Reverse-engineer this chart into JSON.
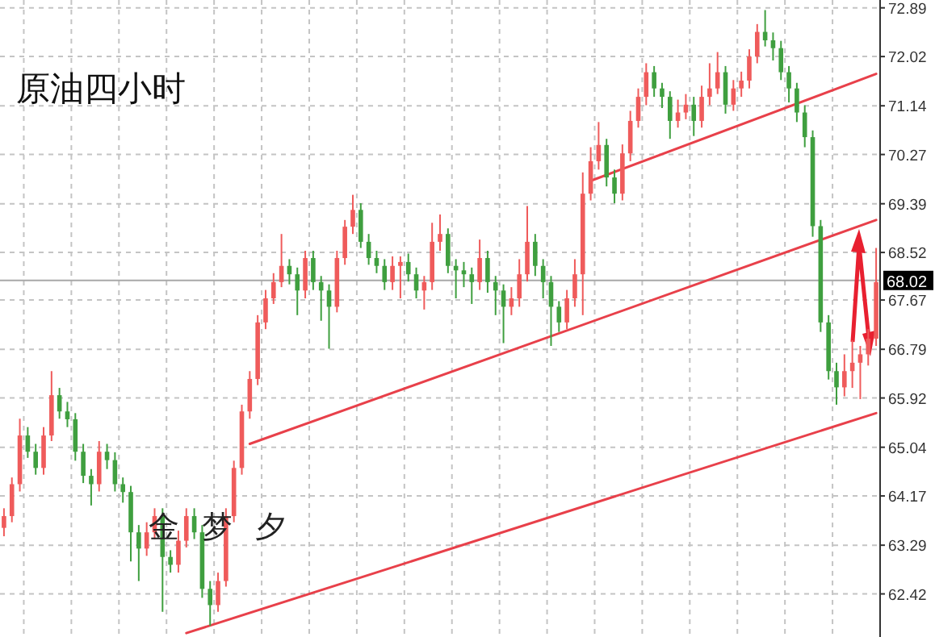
{
  "chart_data": {
    "type": "candlestick",
    "title": "原油四小时",
    "annotations": [
      "金梦夕"
    ],
    "categories": [
      null,
      null,
      null,
      null,
      null,
      null,
      null,
      null,
      null,
      null,
      null,
      null,
      null,
      null,
      null,
      null,
      null,
      null,
      null,
      null,
      null,
      null,
      null,
      null,
      null,
      null,
      null,
      null,
      null,
      null,
      null,
      null,
      null,
      null,
      null,
      null,
      null,
      null,
      null,
      null,
      null,
      null,
      null,
      null,
      null,
      null,
      null,
      null,
      null,
      null,
      null,
      null,
      null,
      null,
      null,
      null,
      null,
      null,
      null,
      null,
      null,
      null,
      null,
      null,
      null,
      null,
      null,
      null,
      null,
      null,
      null,
      null,
      null,
      null,
      null,
      null,
      null,
      null,
      null,
      null,
      null,
      null,
      null,
      null,
      null,
      null,
      null,
      null,
      null,
      null,
      null,
      null,
      null,
      null,
      null,
      null,
      null,
      null,
      null,
      null,
      null,
      null,
      null,
      null,
      null,
      null,
      null,
      null,
      null,
      null,
      null
    ],
    "ohlc": [
      [
        63.6,
        63.95,
        63.45,
        63.81
      ],
      [
        63.81,
        64.5,
        63.7,
        64.38
      ],
      [
        64.38,
        65.55,
        64.25,
        65.25
      ],
      [
        65.25,
        65.4,
        64.85,
        64.96
      ],
      [
        64.96,
        65.1,
        64.55,
        64.67
      ],
      [
        64.67,
        65.4,
        64.55,
        65.25
      ],
      [
        65.25,
        66.4,
        65.15,
        65.97
      ],
      [
        65.97,
        66.1,
        65.55,
        65.68
      ],
      [
        65.68,
        65.85,
        65.4,
        65.54
      ],
      [
        65.54,
        65.65,
        64.8,
        64.96
      ],
      [
        64.96,
        65.1,
        64.4,
        64.53
      ],
      [
        64.53,
        64.65,
        64.0,
        64.38
      ],
      [
        64.38,
        65.15,
        64.25,
        64.96
      ],
      [
        64.96,
        65.1,
        64.65,
        64.81
      ],
      [
        64.81,
        64.95,
        64.25,
        64.38
      ],
      [
        64.38,
        64.5,
        64.05,
        64.24
      ],
      [
        64.24,
        64.35,
        63.0,
        63.52
      ],
      [
        63.52,
        63.65,
        62.65,
        63.23
      ],
      [
        63.23,
        63.7,
        63.1,
        63.52
      ],
      [
        63.52,
        63.95,
        63.4,
        63.81
      ],
      [
        63.81,
        63.95,
        62.1,
        63.08
      ],
      [
        63.08,
        63.2,
        62.8,
        62.94
      ],
      [
        62.94,
        63.55,
        62.8,
        63.37
      ],
      [
        63.37,
        63.95,
        63.25,
        63.81
      ],
      [
        63.81,
        63.95,
        63.4,
        63.52
      ],
      [
        63.52,
        63.65,
        62.35,
        62.51
      ],
      [
        62.51,
        62.65,
        61.85,
        62.22
      ],
      [
        62.22,
        62.8,
        62.1,
        62.65
      ],
      [
        62.65,
        63.95,
        62.55,
        63.81
      ],
      [
        63.81,
        64.8,
        63.7,
        64.67
      ],
      [
        64.67,
        65.8,
        64.55,
        65.68
      ],
      [
        65.68,
        66.4,
        65.55,
        66.26
      ],
      [
        66.26,
        67.4,
        66.15,
        67.27
      ],
      [
        67.27,
        67.85,
        67.15,
        67.7
      ],
      [
        67.7,
        68.15,
        67.6,
        67.99
      ],
      [
        67.99,
        68.85,
        67.9,
        68.28
      ],
      [
        68.28,
        68.4,
        67.95,
        68.13
      ],
      [
        68.13,
        68.25,
        67.4,
        67.84
      ],
      [
        67.84,
        68.55,
        67.7,
        68.42
      ],
      [
        68.42,
        68.55,
        67.85,
        67.99
      ],
      [
        67.99,
        68.1,
        67.3,
        67.84
      ],
      [
        67.84,
        67.95,
        66.8,
        67.55
      ],
      [
        67.55,
        68.55,
        67.45,
        68.42
      ],
      [
        68.42,
        69.1,
        68.3,
        68.98
      ],
      [
        68.98,
        69.55,
        68.85,
        69.28
      ],
      [
        69.28,
        69.4,
        68.6,
        68.71
      ],
      [
        68.71,
        68.85,
        68.3,
        68.42
      ],
      [
        68.42,
        68.55,
        68.15,
        68.28
      ],
      [
        68.28,
        68.4,
        67.85,
        67.99
      ],
      [
        67.99,
        68.45,
        67.85,
        68.28
      ],
      [
        68.28,
        68.45,
        67.7,
        68.35
      ],
      [
        68.35,
        68.5,
        68.0,
        68.13
      ],
      [
        68.13,
        68.25,
        67.7,
        67.84
      ],
      [
        67.84,
        68.1,
        67.5,
        67.99
      ],
      [
        67.99,
        69.05,
        67.85,
        68.71
      ],
      [
        68.71,
        69.2,
        68.55,
        68.85
      ],
      [
        68.85,
        68.95,
        68.15,
        68.28
      ],
      [
        68.28,
        68.4,
        67.7,
        68.2
      ],
      [
        68.2,
        68.35,
        67.9,
        68.13
      ],
      [
        68.13,
        68.25,
        67.6,
        67.99
      ],
      [
        67.99,
        68.75,
        67.85,
        68.42
      ],
      [
        68.42,
        68.55,
        67.8,
        67.99
      ],
      [
        67.99,
        68.1,
        67.4,
        67.84
      ],
      [
        67.84,
        67.95,
        66.9,
        67.55
      ],
      [
        67.55,
        67.9,
        67.4,
        67.7
      ],
      [
        67.7,
        68.4,
        67.55,
        68.13
      ],
      [
        68.13,
        69.35,
        68.0,
        68.71
      ],
      [
        68.71,
        68.85,
        68.1,
        68.28
      ],
      [
        68.28,
        68.4,
        67.7,
        67.99
      ],
      [
        67.99,
        68.1,
        66.85,
        67.55
      ],
      [
        67.55,
        67.65,
        67.1,
        67.27
      ],
      [
        67.27,
        67.85,
        67.15,
        67.7
      ],
      [
        67.7,
        68.4,
        67.55,
        68.13
      ],
      [
        68.13,
        69.95,
        67.4,
        69.57
      ],
      [
        69.57,
        70.4,
        69.45,
        70.15
      ],
      [
        70.15,
        70.85,
        70.0,
        70.44
      ],
      [
        70.44,
        70.55,
        69.7,
        69.86
      ],
      [
        69.86,
        70.0,
        69.4,
        69.57
      ],
      [
        69.57,
        70.45,
        69.45,
        70.29
      ],
      [
        70.29,
        71.05,
        70.15,
        70.87
      ],
      [
        70.87,
        71.45,
        70.75,
        71.3
      ],
      [
        71.3,
        71.9,
        71.15,
        71.74
      ],
      [
        71.74,
        71.85,
        71.3,
        71.45
      ],
      [
        71.45,
        71.55,
        71.1,
        71.3
      ],
      [
        71.3,
        71.4,
        70.55,
        70.87
      ],
      [
        70.87,
        71.25,
        70.75,
        71.02
      ],
      [
        71.02,
        71.35,
        70.9,
        71.16
      ],
      [
        71.16,
        71.3,
        70.6,
        70.87
      ],
      [
        70.87,
        71.5,
        70.75,
        71.3
      ],
      [
        71.3,
        71.9,
        71.15,
        71.45
      ],
      [
        71.45,
        72.1,
        71.35,
        71.74
      ],
      [
        71.74,
        71.85,
        71.0,
        71.16
      ],
      [
        71.16,
        71.6,
        71.05,
        71.45
      ],
      [
        71.45,
        71.75,
        71.3,
        71.59
      ],
      [
        71.59,
        72.15,
        71.45,
        72.02
      ],
      [
        72.02,
        72.6,
        71.9,
        72.46
      ],
      [
        72.46,
        72.85,
        72.2,
        72.31
      ],
      [
        72.31,
        72.45,
        71.95,
        72.17
      ],
      [
        72.17,
        72.3,
        71.6,
        71.74
      ],
      [
        71.74,
        71.85,
        71.2,
        71.45
      ],
      [
        71.45,
        71.55,
        70.85,
        71.02
      ],
      [
        71.02,
        71.15,
        70.4,
        70.58
      ],
      [
        70.58,
        70.7,
        68.8,
        68.99
      ],
      [
        68.99,
        69.1,
        67.1,
        67.27
      ],
      [
        67.27,
        67.4,
        66.25,
        66.4
      ],
      [
        66.4,
        66.55,
        65.8,
        66.11
      ],
      [
        66.11,
        66.7,
        65.95,
        66.4
      ],
      [
        66.4,
        66.95,
        66.1,
        66.55
      ],
      [
        66.55,
        66.85,
        65.9,
        66.7
      ],
      [
        66.7,
        67.15,
        66.5,
        66.98
      ],
      [
        66.98,
        68.6,
        66.85,
        67.99
      ]
    ],
    "colors": [
      "#ef5b5b",
      "#ef5b5b",
      "#ef5b5b",
      "#3f9f3f",
      "#3f9f3f",
      "#ef5b5b",
      "#ef5b5b",
      "#3f9f3f",
      "#3f9f3f",
      "#3f9f3f",
      "#3f9f3f",
      "#3f9f3f",
      "#ef5b5b",
      "#3f9f3f",
      "#3f9f3f",
      "#3f9f3f",
      "#3f9f3f",
      "#3f9f3f",
      "#ef5b5b",
      "#ef5b5b",
      "#3f9f3f",
      "#3f9f3f",
      "#ef5b5b",
      "#ef5b5b",
      "#3f9f3f",
      "#3f9f3f",
      "#3f9f3f",
      "#ef5b5b",
      "#ef5b5b",
      "#ef5b5b",
      "#ef5b5b",
      "#ef5b5b",
      "#ef5b5b",
      "#ef5b5b",
      "#ef5b5b",
      "#ef5b5b",
      "#3f9f3f",
      "#3f9f3f",
      "#ef5b5b",
      "#3f9f3f",
      "#3f9f3f",
      "#3f9f3f",
      "#ef5b5b",
      "#ef5b5b",
      "#ef5b5b",
      "#3f9f3f",
      "#3f9f3f",
      "#3f9f3f",
      "#3f9f3f",
      "#ef5b5b",
      "#ef5b5b",
      "#3f9f3f",
      "#3f9f3f",
      "#ef5b5b",
      "#ef5b5b",
      "#ef5b5b",
      "#3f9f3f",
      "#3f9f3f",
      "#3f9f3f",
      "#3f9f3f",
      "#ef5b5b",
      "#3f9f3f",
      "#3f9f3f",
      "#3f9f3f",
      "#ef5b5b",
      "#ef5b5b",
      "#ef5b5b",
      "#3f9f3f",
      "#3f9f3f",
      "#3f9f3f",
      "#3f9f3f",
      "#ef5b5b",
      "#ef5b5b",
      "#ef5b5b",
      "#ef5b5b",
      "#ef5b5b",
      "#3f9f3f",
      "#3f9f3f",
      "#ef5b5b",
      "#ef5b5b",
      "#ef5b5b",
      "#ef5b5b",
      "#3f9f3f",
      "#3f9f3f",
      "#3f9f3f",
      "#ef5b5b",
      "#ef5b5b",
      "#3f9f3f",
      "#ef5b5b",
      "#ef5b5b",
      "#ef5b5b",
      "#3f9f3f",
      "#ef5b5b",
      "#ef5b5b",
      "#ef5b5b",
      "#ef5b5b",
      "#3f9f3f",
      "#3f9f3f",
      "#3f9f3f",
      "#3f9f3f",
      "#3f9f3f",
      "#3f9f3f",
      "#3f9f3f",
      "#3f9f3f",
      "#3f9f3f",
      "#3f9f3f",
      "#ef5b5b",
      "#ef5b5b",
      "#ef5b5b",
      "#ef5b5b",
      "#ef5b5b"
    ],
    "series": [
      {
        "type": "line",
        "values": [
          null,
          null,
          null,
          null,
          null,
          null,
          null,
          null,
          null,
          null,
          null,
          null,
          null,
          null,
          null,
          null,
          null,
          null,
          null,
          null,
          null,
          null,
          null,
          null,
          null,
          null,
          null,
          null,
          null,
          null,
          null,
          null,
          null,
          null,
          null,
          null,
          null,
          null,
          null,
          null,
          null,
          null,
          null,
          null,
          null,
          null,
          null,
          null,
          null,
          null,
          null,
          null,
          null,
          null,
          null,
          null,
          null,
          null,
          null,
          null,
          null,
          null,
          null,
          null,
          null,
          null,
          null,
          null,
          null,
          null,
          null,
          null,
          null,
          null,
          69.8,
          null,
          null,
          null,
          null,
          null,
          null,
          null,
          null,
          null,
          null,
          null,
          null,
          null,
          null,
          null,
          null,
          null,
          null,
          null,
          null,
          null,
          null,
          null,
          null,
          null,
          null,
          null,
          null,
          null,
          null,
          null,
          null,
          null,
          null,
          null,
          71.71
        ],
        "color": "#e8404a"
      },
      {
        "type": "line",
        "values": [
          null,
          null,
          null,
          null,
          null,
          null,
          null,
          null,
          null,
          null,
          null,
          null,
          null,
          null,
          null,
          null,
          null,
          null,
          null,
          null,
          null,
          null,
          null,
          null,
          null,
          null,
          null,
          null,
          null,
          null,
          null,
          65.1,
          null,
          null,
          null,
          null,
          null,
          null,
          null,
          null,
          null,
          null,
          null,
          null,
          null,
          null,
          null,
          null,
          null,
          null,
          null,
          null,
          null,
          null,
          null,
          null,
          null,
          null,
          null,
          null,
          null,
          null,
          null,
          null,
          null,
          null,
          null,
          null,
          null,
          null,
          null,
          null,
          null,
          null,
          null,
          null,
          null,
          null,
          null,
          null,
          null,
          null,
          null,
          null,
          null,
          null,
          null,
          null,
          null,
          null,
          null,
          null,
          null,
          null,
          null,
          null,
          null,
          null,
          null,
          null,
          null,
          null,
          null,
          null,
          null,
          null,
          null,
          null,
          null,
          null,
          69.1
        ],
        "color": "#e8404a"
      },
      {
        "type": "line",
        "values": [
          null,
          null,
          null,
          null,
          null,
          null,
          null,
          null,
          null,
          null,
          null,
          null,
          null,
          null,
          null,
          null,
          null,
          null,
          null,
          null,
          null,
          null,
          null,
          61.72,
          null,
          null,
          null,
          null,
          null,
          null,
          null,
          null,
          null,
          null,
          null,
          null,
          null,
          null,
          null,
          null,
          null,
          null,
          null,
          null,
          null,
          null,
          null,
          null,
          null,
          null,
          null,
          null,
          null,
          null,
          null,
          null,
          null,
          null,
          null,
          null,
          null,
          null,
          null,
          null,
          null,
          null,
          null,
          null,
          null,
          null,
          null,
          null,
          null,
          null,
          null,
          null,
          null,
          null,
          null,
          null,
          null,
          null,
          null,
          null,
          null,
          null,
          null,
          null,
          null,
          null,
          null,
          null,
          null,
          null,
          null,
          null,
          null,
          null,
          null,
          null,
          null,
          null,
          null,
          null,
          null,
          null,
          null,
          null,
          null,
          null,
          65.65
        ],
        "color": "#e8404a"
      }
    ],
    "ylim": [
      61.65,
      73.03
    ],
    "yticks": [
      62.42,
      63.29,
      64.17,
      65.04,
      65.92,
      66.79,
      67.67,
      68.52,
      69.39,
      70.27,
      71.14,
      72.02,
      72.89
    ],
    "ref_lines": [
      {
        "axis": "y",
        "value": 68.02,
        "label": "68.02",
        "color": "#a8a8a8"
      }
    ],
    "grid": true,
    "tick_labels": "y"
  }
}
